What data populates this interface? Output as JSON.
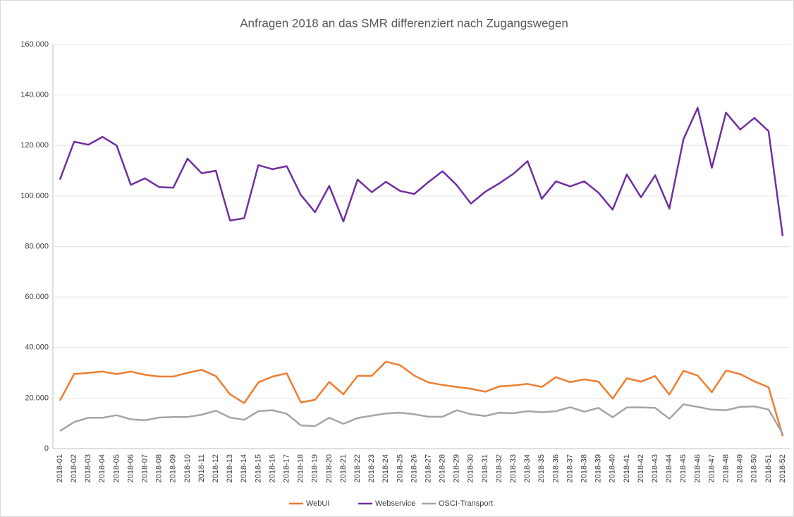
{
  "chart_data": {
    "type": "line",
    "title": "Anfragen 2018 an das SMR differenziert nach Zugangswegen",
    "categories": [
      "2018-01",
      "2018-02",
      "2018-03",
      "2018-04",
      "2018-05",
      "2018-06",
      "2018-07",
      "2018-08",
      "2018-09",
      "2018-10",
      "2018-11",
      "2018-12",
      "2018-13",
      "2018-14",
      "2018-15",
      "2018-16",
      "2018-17",
      "2018-18",
      "2018-19",
      "2018-20",
      "2018-21",
      "2018-22",
      "2018-23",
      "2018-24",
      "2018-25",
      "2018-26",
      "2018-27",
      "2018-28",
      "2018-29",
      "2018-30",
      "2018-31",
      "2018-32",
      "2018-33",
      "2018-34",
      "2018-35",
      "2018-36",
      "2018-37",
      "2018-38",
      "2018-39",
      "2018-40",
      "2018-41",
      "2018-42",
      "2018-43",
      "2018-44",
      "2018-45",
      "2018-46",
      "2018-47",
      "2018-48",
      "2018-49",
      "2018-50",
      "2018-51",
      "2018-52"
    ],
    "series": [
      {
        "name": "WebUI",
        "color": "#ed7d31",
        "values": [
          19000,
          29500,
          30000,
          30500,
          29500,
          30500,
          29200,
          28500,
          28500,
          30000,
          31200,
          28700,
          21500,
          18000,
          26200,
          28500,
          29800,
          18300,
          19300,
          26400,
          21500,
          28800,
          28800,
          34400,
          33000,
          28900,
          26200,
          25200,
          24400,
          23700,
          22500,
          24600,
          25000,
          25600,
          24400,
          28300,
          26300,
          27400,
          26500,
          19800,
          27800,
          26500,
          28700,
          21400,
          30800,
          28900,
          22300,
          30900,
          29500,
          26600,
          24300,
          5000
        ]
      },
      {
        "name": "Webservice",
        "color": "#7030a0",
        "values": [
          106500,
          121500,
          120300,
          123400,
          120000,
          104400,
          107000,
          103500,
          103300,
          114800,
          109000,
          110000,
          90300,
          91200,
          112200,
          110600,
          111800,
          100400,
          93600,
          104000,
          89900,
          106500,
          101500,
          105600,
          102000,
          100800,
          105500,
          109800,
          104300,
          97000,
          101600,
          105000,
          108800,
          113800,
          98900,
          105800,
          103800,
          105800,
          101300,
          94600,
          108500,
          99500,
          108200,
          95000,
          122500,
          134900,
          111200,
          133000,
          126300,
          130900,
          125700,
          84100
        ]
      },
      {
        "name": "OSCI-Transport",
        "color": "#a5a5a5",
        "values": [
          7000,
          10500,
          12200,
          12200,
          13200,
          11600,
          11200,
          12300,
          12500,
          12500,
          13400,
          15000,
          12300,
          11400,
          14800,
          15200,
          13800,
          9200,
          8900,
          12200,
          9800,
          12100,
          13000,
          13900,
          14200,
          13600,
          12600,
          12600,
          15200,
          13600,
          12900,
          14200,
          14000,
          14800,
          14400,
          14800,
          16400,
          14600,
          16100,
          12400,
          16300,
          16300,
          16100,
          11800,
          17500,
          16500,
          15400,
          15200,
          16500,
          16700,
          15500,
          5800
        ]
      }
    ],
    "ylim": [
      0,
      160000
    ],
    "yticks": [
      0,
      {
        "value": 20000,
        "label": "20.000"
      },
      {
        "value": 40000,
        "label": "40.000"
      },
      {
        "value": 60000,
        "label": "60.000"
      },
      {
        "value": 80000,
        "label": "80.000"
      },
      {
        "value": 100000,
        "label": "100.000"
      },
      {
        "value": 120000,
        "label": "120.000"
      },
      {
        "value": 140000,
        "label": "140.000"
      },
      {
        "value": 160000,
        "label": "160.000"
      }
    ],
    "grid": true,
    "legend": "bottom"
  }
}
